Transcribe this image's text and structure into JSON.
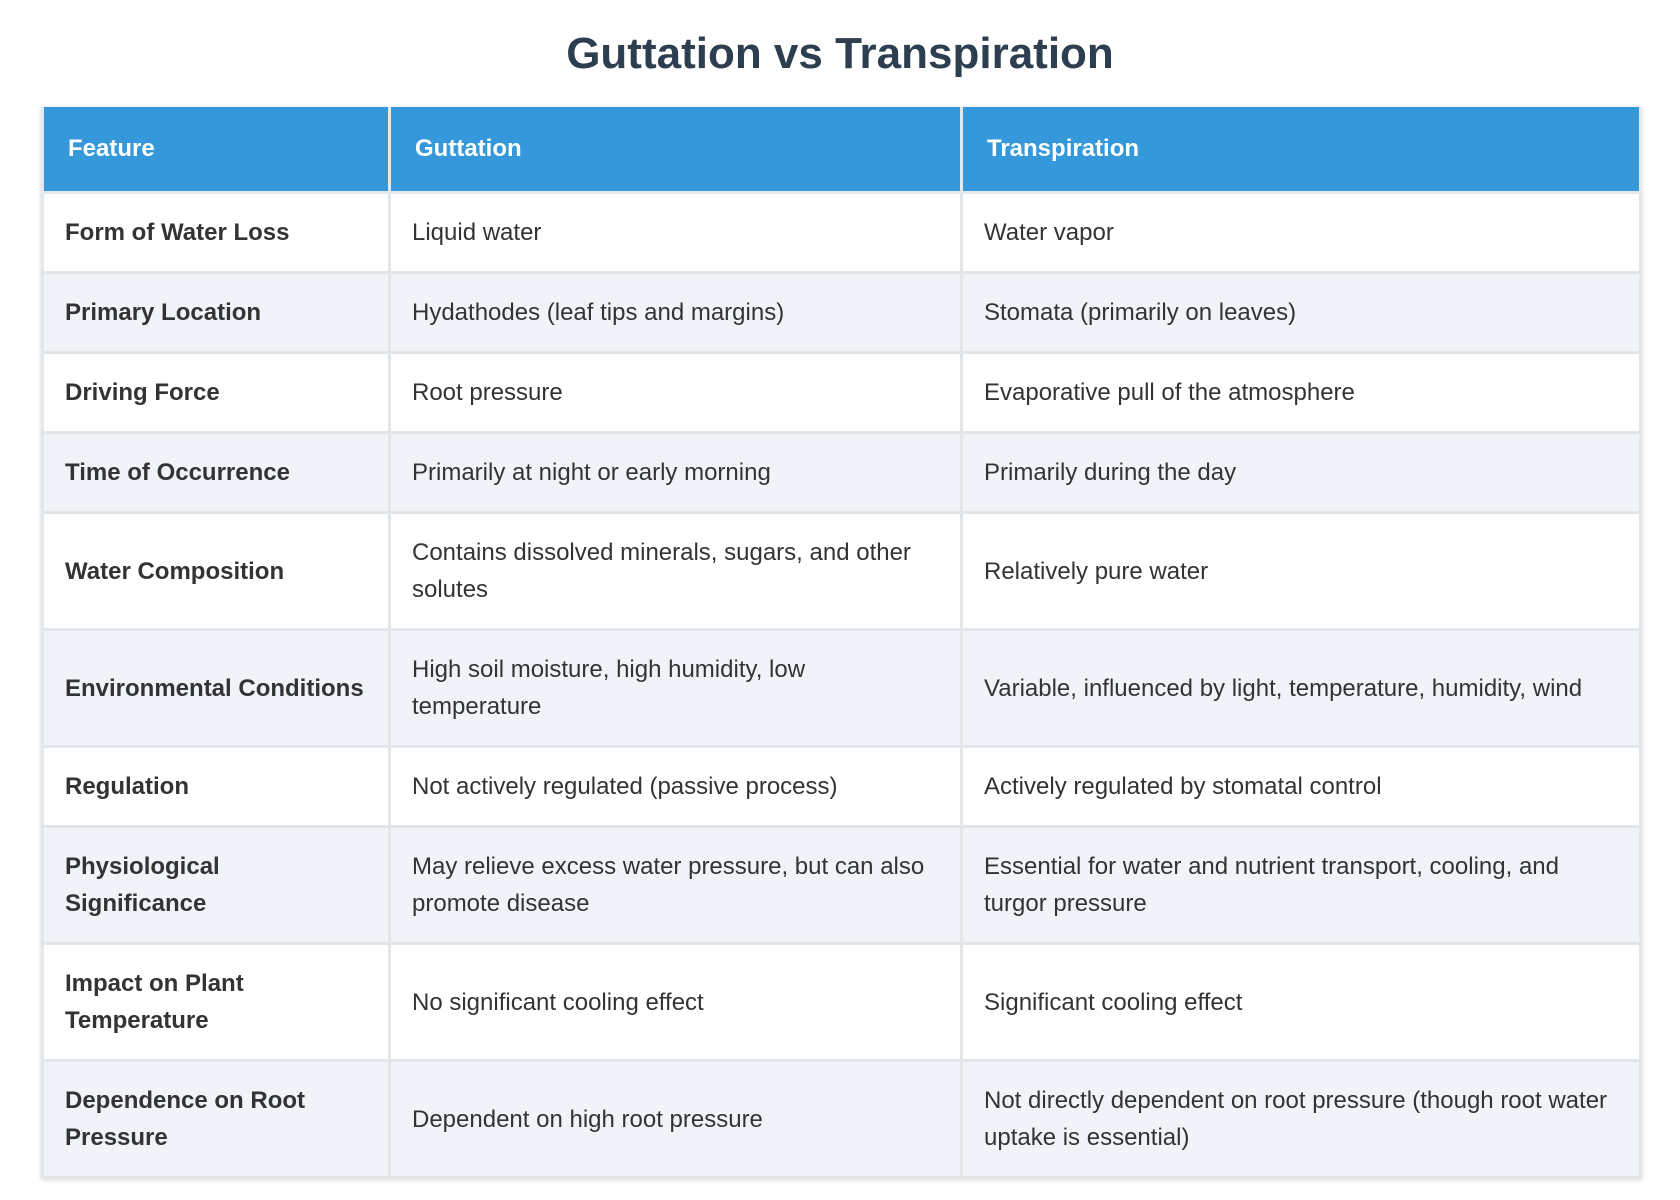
{
  "header": {
    "title": "Guttation vs Transpiration"
  },
  "table": {
    "columns": [
      "Feature",
      "Guttation",
      "Transpiration"
    ],
    "rows": [
      [
        "Form of Water Loss",
        "Liquid water",
        "Water vapor"
      ],
      [
        "Primary Location",
        "Hydathodes (leaf tips and margins)",
        "Stomata (primarily on leaves)"
      ],
      [
        "Driving Force",
        "Root pressure",
        "Evaporative pull of the atmosphere"
      ],
      [
        "Time of Occurrence",
        "Primarily at night or early morning",
        "Primarily during the day"
      ],
      [
        "Water Composition",
        "Contains dissolved minerals, sugars, and other solutes",
        "Relatively pure water"
      ],
      [
        "Environmental Conditions",
        "High soil moisture, high humidity, low temperature",
        "Variable, influenced by light, temperature, humidity, wind"
      ],
      [
        "Regulation",
        "Not actively regulated (passive process)",
        "Actively regulated by stomatal control"
      ],
      [
        "Physiological Significance",
        "May relieve excess water pressure, but can also promote disease",
        "Essential for water and nutrient transport, cooling, and turgor pressure"
      ],
      [
        "Impact on Plant Temperature",
        "No significant cooling effect",
        "Significant cooling effect"
      ],
      [
        "Dependence on Root Pressure",
        "Dependent on high root pressure",
        "Not directly dependent on root pressure (though root water uptake is essential)"
      ]
    ]
  }
}
